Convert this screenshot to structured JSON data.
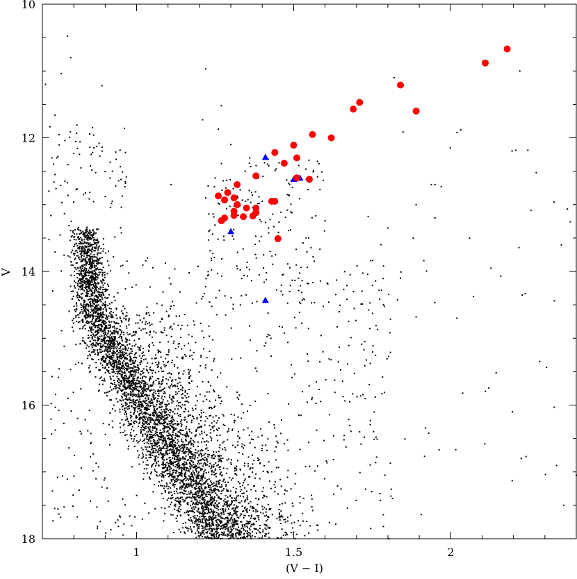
{
  "chart_data": {
    "type": "scatter",
    "title": "",
    "xlabel": "(V − I)",
    "ylabel": "V",
    "xlim": [
      0.7,
      2.4
    ],
    "ylim": [
      18,
      10
    ],
    "y_inverted": true,
    "grid": false,
    "legend": "none",
    "x_ticks": [
      {
        "value": 1,
        "label": "1"
      },
      {
        "value": 1.5,
        "label": "1.5"
      },
      {
        "value": 2,
        "label": "2"
      }
    ],
    "y_ticks": [
      {
        "value": 10,
        "label": "10"
      },
      {
        "value": 12,
        "label": "12"
      },
      {
        "value": 14,
        "label": "14"
      },
      {
        "value": 16,
        "label": "16"
      },
      {
        "value": 18,
        "label": "18"
      }
    ],
    "series": [
      {
        "marker": "circle",
        "color": "#ff0000",
        "points": [
          [
            2.18,
            10.67
          ],
          [
            2.11,
            10.88
          ],
          [
            1.84,
            11.21
          ],
          [
            1.89,
            11.6
          ],
          [
            1.71,
            11.47
          ],
          [
            1.69,
            11.57
          ],
          [
            1.62,
            12.0
          ],
          [
            1.56,
            11.95
          ],
          [
            1.5,
            12.11
          ],
          [
            1.44,
            12.22
          ],
          [
            1.47,
            12.38
          ],
          [
            1.51,
            12.3
          ],
          [
            1.38,
            12.57
          ],
          [
            1.51,
            12.6
          ],
          [
            1.55,
            12.62
          ],
          [
            1.32,
            12.7
          ],
          [
            1.29,
            12.82
          ],
          [
            1.26,
            12.87
          ],
          [
            1.31,
            12.9
          ],
          [
            1.28,
            12.93
          ],
          [
            1.43,
            12.95
          ],
          [
            1.44,
            12.95
          ],
          [
            1.32,
            13.0
          ],
          [
            1.35,
            13.05
          ],
          [
            1.38,
            13.05
          ],
          [
            1.31,
            13.1
          ],
          [
            1.38,
            13.12
          ],
          [
            1.31,
            13.16
          ],
          [
            1.34,
            13.18
          ],
          [
            1.37,
            13.17
          ],
          [
            1.28,
            13.2
          ],
          [
            1.27,
            13.24
          ],
          [
            1.45,
            13.51
          ]
        ]
      },
      {
        "marker": "triangle",
        "color": "#0000ff",
        "points": [
          [
            1.41,
            12.29
          ],
          [
            1.5,
            12.62
          ],
          [
            1.52,
            12.6
          ],
          [
            1.3,
            13.4
          ],
          [
            1.41,
            14.43
          ]
        ]
      },
      {
        "marker": "dot",
        "color": "#000000",
        "description": "field and cluster stars: dense main sequence from (0.8, 14.3) curving down to (1.25, 18), subgiant/red giant scatter above",
        "points": [
          [
            0.78,
            10.48
          ],
          [
            0.79,
            10.8
          ],
          [
            1.22,
            10.97
          ],
          [
            0.76,
            11.04
          ],
          [
            2.41,
            11.05
          ],
          [
            1.82,
            11.1
          ],
          [
            0.71,
            11.2
          ],
          [
            0.89,
            11.22
          ],
          [
            0.74,
            11.66
          ],
          [
            1.21,
            11.73
          ],
          [
            0.81,
            11.81
          ],
          [
            1.27,
            11.52
          ],
          [
            1.26,
            11.87
          ],
          [
            1.3,
            12.1
          ],
          [
            0.82,
            12.06
          ],
          [
            0.86,
            12.22
          ],
          [
            0.89,
            12.2
          ],
          [
            0.73,
            12.3
          ],
          [
            2.02,
            11.92
          ],
          [
            1.95,
            12.7
          ],
          [
            1.97,
            12.73
          ],
          [
            1.11,
            12.7
          ],
          [
            0.74,
            12.55
          ],
          [
            0.9,
            12.88
          ],
          [
            1.89,
            13.0
          ],
          [
            2.06,
            13.5
          ],
          [
            1.8,
            13.35
          ],
          [
            1.23,
            13.14
          ],
          [
            1.23,
            13.4
          ],
          [
            1.95,
            13.2
          ],
          [
            2.22,
            11.0
          ],
          [
            2.33,
            14.44
          ],
          [
            1.84,
            14.1
          ],
          [
            1.89,
            14.68
          ],
          [
            2.02,
            14.7
          ],
          [
            1.68,
            14.05
          ],
          [
            1.93,
            16.42
          ],
          [
            2.24,
            16.77
          ],
          [
            1.71,
            16.4
          ],
          [
            2.4,
            17.05
          ],
          [
            2.36,
            17.5
          ],
          [
            1.22,
            12.9
          ],
          [
            1.36,
            12.3
          ],
          [
            1.25,
            12.6
          ],
          [
            1.48,
            12.85
          ],
          [
            1.42,
            13.35
          ],
          [
            1.4,
            12.95
          ],
          [
            1.26,
            12.98
          ],
          [
            1.33,
            12.78
          ]
        ]
      }
    ]
  }
}
